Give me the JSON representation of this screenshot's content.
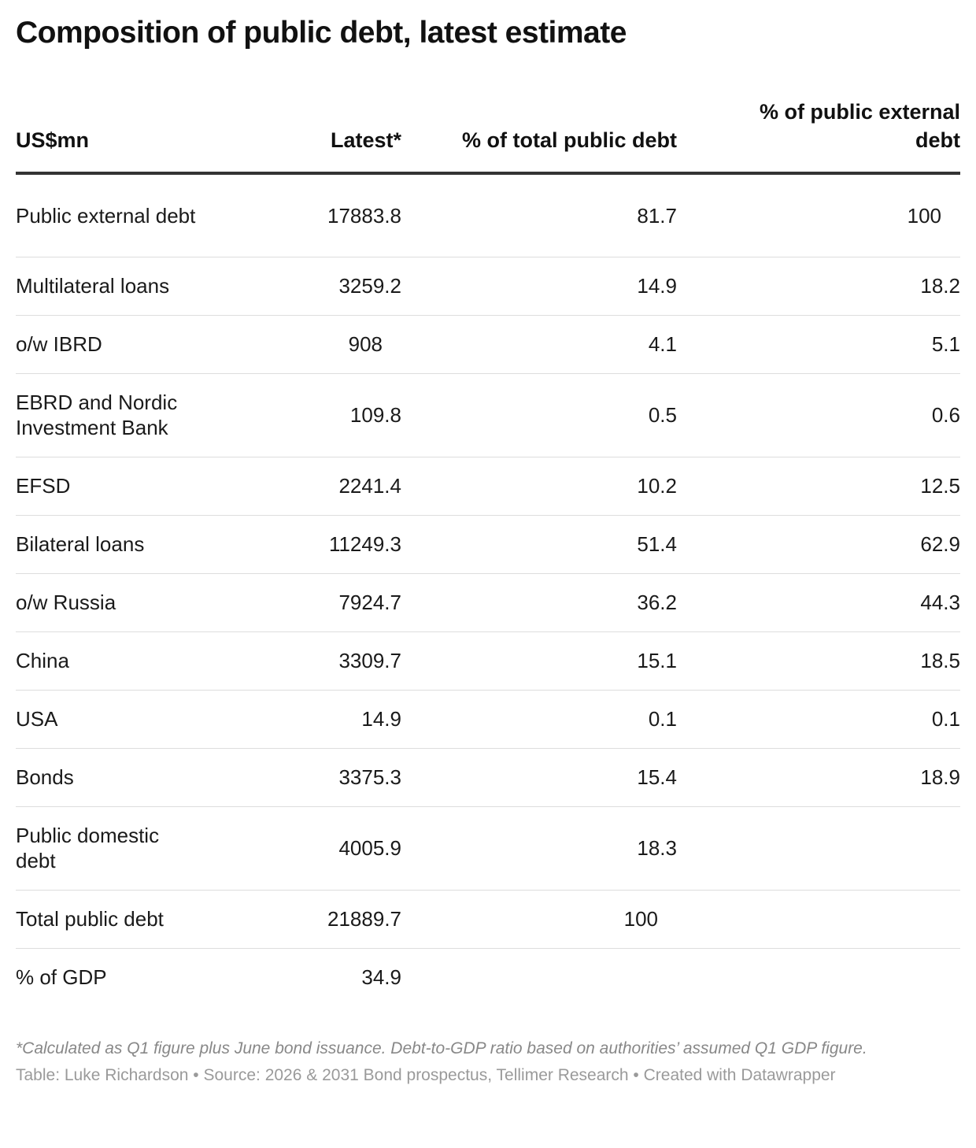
{
  "chart_data": {
    "type": "table",
    "title": "Composition of public debt, latest estimate",
    "columns": [
      "US$mn",
      "Latest*",
      "% of total public debt",
      "% of public external debt"
    ],
    "rows": [
      {
        "label": "Public external debt",
        "latest": "17883.8",
        "pct_total": "81.7",
        "pct_external": "100"
      },
      {
        "label": "Multilateral loans",
        "latest": "3259.2",
        "pct_total": "14.9",
        "pct_external": "18.2"
      },
      {
        "label": "o/w IBRD",
        "latest": "908",
        "pct_total": "4.1",
        "pct_external": "5.1"
      },
      {
        "label": "EBRD and Nordic Investment Bank",
        "latest": "109.8",
        "pct_total": "0.5",
        "pct_external": "0.6"
      },
      {
        "label": "EFSD",
        "latest": "2241.4",
        "pct_total": "10.2",
        "pct_external": "12.5"
      },
      {
        "label": "Bilateral loans",
        "latest": "11249.3",
        "pct_total": "51.4",
        "pct_external": "62.9"
      },
      {
        "label": "o/w Russia",
        "latest": "7924.7",
        "pct_total": "36.2",
        "pct_external": "44.3"
      },
      {
        "label": "China",
        "latest": "3309.7",
        "pct_total": "15.1",
        "pct_external": "18.5"
      },
      {
        "label": "USA",
        "latest": "14.9",
        "pct_total": "0.1",
        "pct_external": "0.1"
      },
      {
        "label": "Bonds",
        "latest": "3375.3",
        "pct_total": "15.4",
        "pct_external": "18.9"
      },
      {
        "label": "Public domestic debt",
        "latest": "4005.9",
        "pct_total": "18.3",
        "pct_external": ""
      },
      {
        "label": "Total public debt",
        "latest": "21889.7",
        "pct_total": "100",
        "pct_external": ""
      },
      {
        "label": "% of GDP",
        "latest": "34.9",
        "pct_total": "",
        "pct_external": ""
      }
    ],
    "footnote": "*Calculated as Q1 figure plus June bond issuance. Debt-to-GDP ratio based on authorities’ assumed Q1 GDP figure.",
    "credit": "Table: Luke Richardson • Source: 2026 & 2031 Bond prospectus, Tellimer Research • Created with Datawrapper"
  }
}
